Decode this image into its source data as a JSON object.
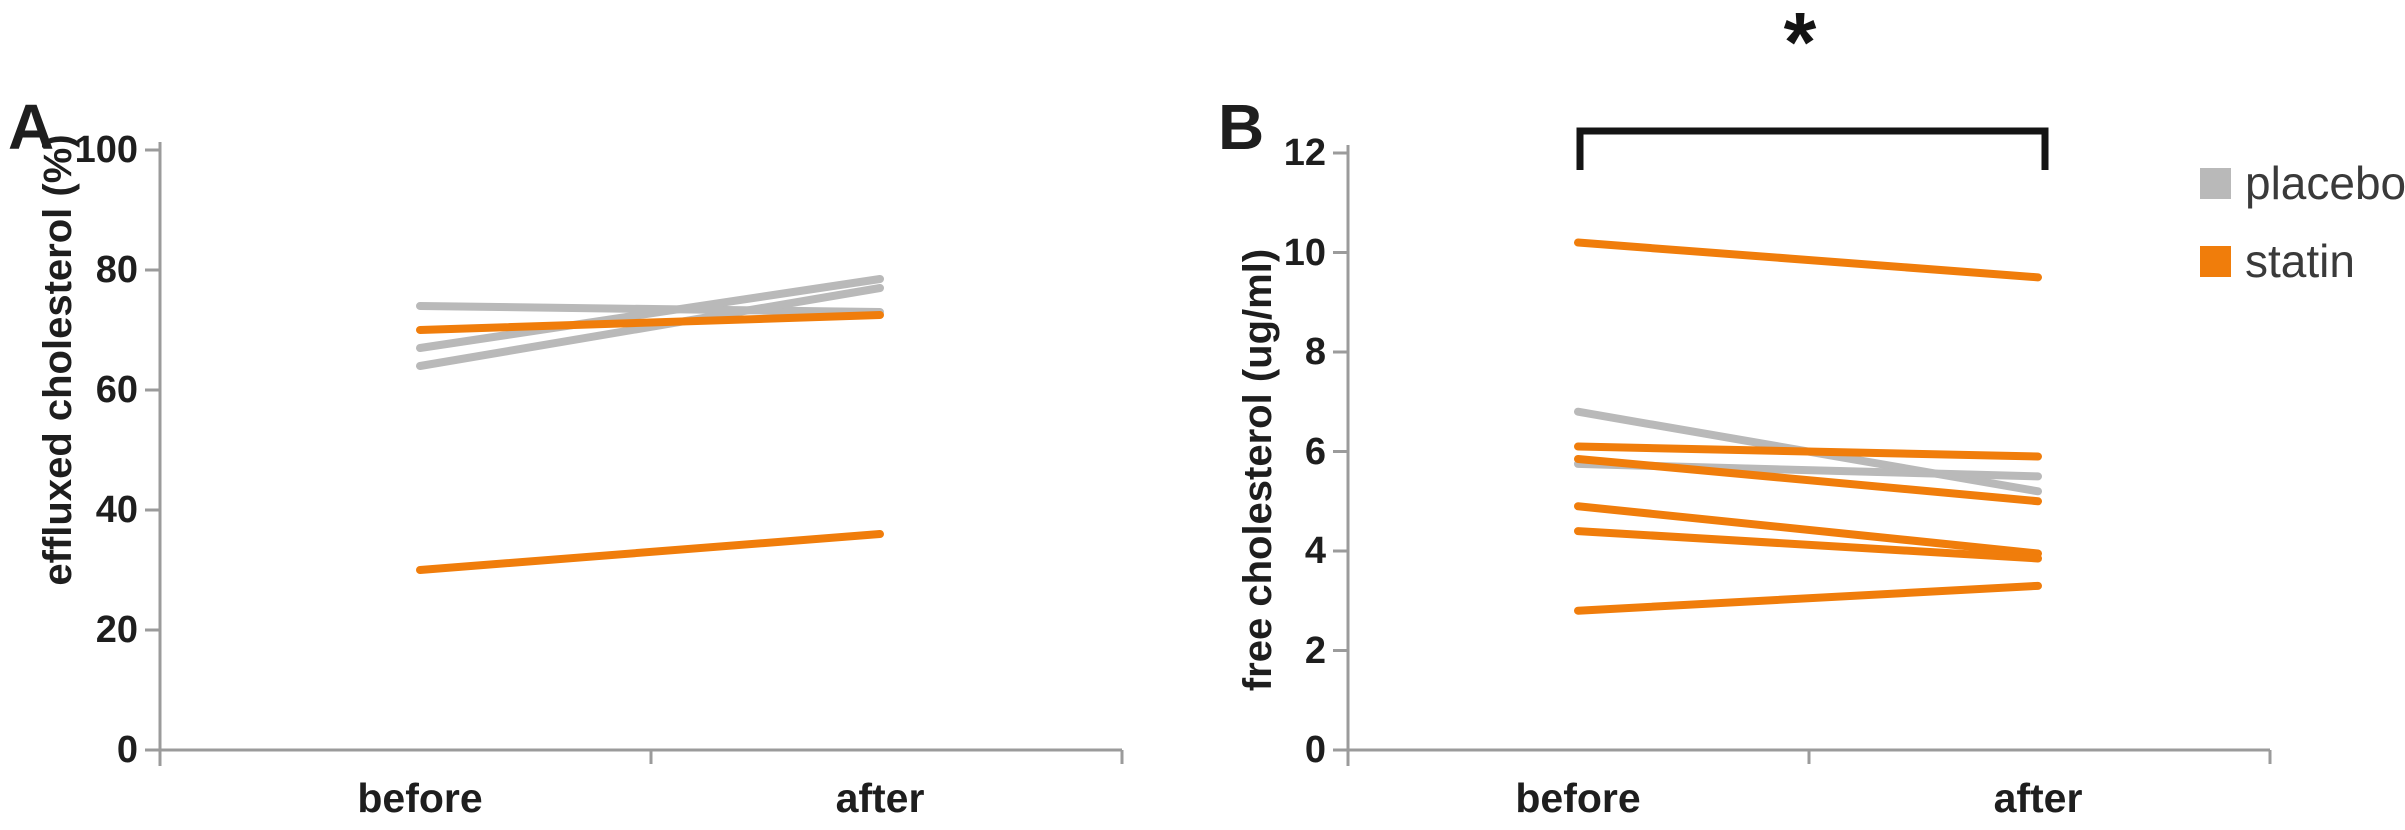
{
  "figure_type": "two-panel paired line figure (before/after)",
  "legend": {
    "items": [
      {
        "label": "placebo",
        "color": "#B9B9B9"
      },
      {
        "label": "statin",
        "color": "#F07D0B"
      }
    ]
  },
  "chart_data": [
    {
      "type": "line",
      "panel_label": "A",
      "title": "",
      "x": [
        "before",
        "after"
      ],
      "ylabel": "effluxed cholesterol (%)",
      "ylim": [
        0,
        100
      ],
      "yticks": [
        0,
        20,
        40,
        60,
        80,
        100
      ],
      "grid": false,
      "legend_position": "outside-right (shared, shown near panel B)",
      "series": [
        {
          "name": "placebo",
          "color": "#B9B9B9",
          "values": [
            74,
            73
          ]
        },
        {
          "name": "placebo",
          "color": "#B9B9B9",
          "values": [
            67,
            78.5
          ]
        },
        {
          "name": "placebo",
          "color": "#B9B9B9",
          "values": [
            64,
            77
          ]
        },
        {
          "name": "statin",
          "color": "#F07D0B",
          "values": [
            70,
            72.5
          ]
        },
        {
          "name": "statin",
          "color": "#F07D0B",
          "values": [
            30,
            36
          ]
        }
      ]
    },
    {
      "type": "line",
      "panel_label": "B",
      "title": "",
      "x": [
        "before",
        "after"
      ],
      "ylabel": "free cholesterol (ug/ml)",
      "ylim": [
        0,
        12
      ],
      "yticks": [
        0,
        2,
        4,
        6,
        8,
        10,
        12
      ],
      "grid": false,
      "annotation": {
        "text": "*",
        "span": [
          "before",
          "after"
        ],
        "type": "significance-bracket"
      },
      "series": [
        {
          "name": "placebo",
          "color": "#B9B9B9",
          "values": [
            6.8,
            5.2
          ]
        },
        {
          "name": "placebo",
          "color": "#B9B9B9",
          "values": [
            5.75,
            5.5
          ]
        },
        {
          "name": "statin",
          "color": "#F07D0B",
          "values": [
            10.2,
            9.5
          ]
        },
        {
          "name": "statin",
          "color": "#F07D0B",
          "values": [
            6.1,
            5.9
          ]
        },
        {
          "name": "statin",
          "color": "#F07D0B",
          "values": [
            5.85,
            5.0
          ]
        },
        {
          "name": "statin",
          "color": "#F07D0B",
          "values": [
            4.9,
            3.95
          ]
        },
        {
          "name": "statin",
          "color": "#F07D0B",
          "values": [
            4.4,
            3.85
          ]
        },
        {
          "name": "statin",
          "color": "#F07D0B",
          "values": [
            2.8,
            3.3
          ]
        }
      ]
    }
  ]
}
